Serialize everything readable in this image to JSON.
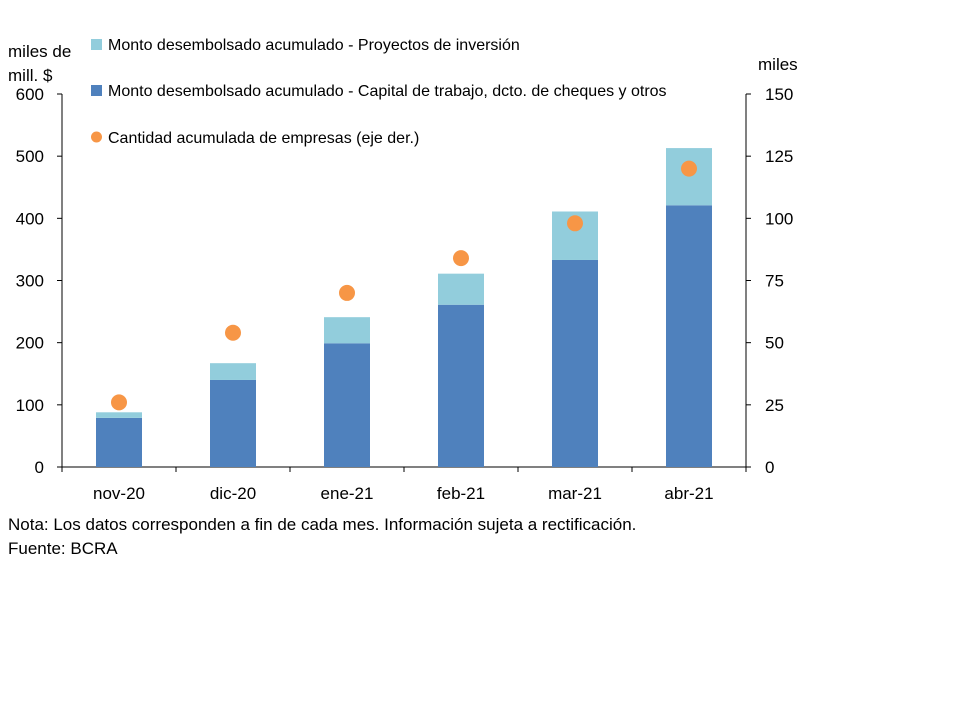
{
  "chart_data": {
    "type": "bar",
    "stacked": true,
    "categories": [
      "nov-20",
      "dic-20",
      "ene-21",
      "feb-21",
      "mar-21",
      "abr-21"
    ],
    "series": [
      {
        "name": "Monto desembolsado acumulado - Capital de trabajo, dcto. de cheques y otros",
        "kind": "bar",
        "axis": "left",
        "color": "#4f81bd",
        "values": [
          79,
          140,
          199,
          261,
          333,
          421
        ]
      },
      {
        "name": "Monto desembolsado acumulado - Proyectos de inversión",
        "kind": "bar",
        "axis": "left",
        "color": "#92cddc",
        "values": [
          9,
          27,
          42,
          50,
          78,
          92
        ]
      },
      {
        "name": "Cantidad acumulada de empresas (eje der.)",
        "kind": "scatter",
        "axis": "right",
        "color": "#f79646",
        "values": [
          26,
          54,
          70,
          84,
          98,
          120
        ]
      }
    ],
    "y_left": {
      "label_line1": "miles de",
      "label_line2": "mill. $",
      "min": 0,
      "max": 600,
      "ticks": [
        0,
        100,
        200,
        300,
        400,
        500,
        600
      ]
    },
    "y_right": {
      "label": "miles",
      "min": 0,
      "max": 150,
      "ticks": [
        0,
        25,
        50,
        75,
        100,
        125,
        150
      ]
    },
    "legend_position": "top-left",
    "grid": false
  },
  "notes": {
    "nota": "Nota: Los datos corresponden a fin de cada mes. Información sujeta a rectificación.",
    "fuente": "Fuente: BCRA"
  }
}
